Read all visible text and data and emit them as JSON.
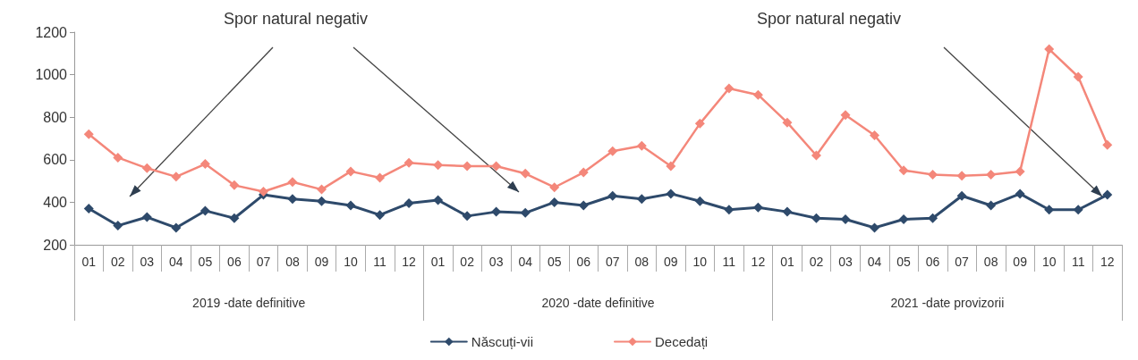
{
  "chart_data": {
    "type": "line",
    "categories": [
      "01",
      "02",
      "03",
      "04",
      "05",
      "06",
      "07",
      "08",
      "09",
      "10",
      "11",
      "12",
      "01",
      "02",
      "03",
      "04",
      "05",
      "06",
      "07",
      "08",
      "09",
      "10",
      "11",
      "12",
      "01",
      "02",
      "03",
      "04",
      "05",
      "06",
      "07",
      "08",
      "09",
      "10",
      "11",
      "12"
    ],
    "series": [
      {
        "name": "Născuți-vii",
        "color": "#2e4a6b",
        "values": [
          370,
          290,
          330,
          280,
          360,
          325,
          435,
          415,
          405,
          385,
          340,
          395,
          410,
          335,
          355,
          350,
          400,
          385,
          430,
          415,
          440,
          405,
          365,
          375,
          355,
          325,
          320,
          280,
          320,
          325,
          430,
          385,
          440,
          365,
          365,
          435
        ]
      },
      {
        "name": "Decedați",
        "color": "#f4877a",
        "values": [
          720,
          610,
          560,
          520,
          580,
          480,
          450,
          495,
          460,
          545,
          515,
          585,
          575,
          570,
          570,
          535,
          470,
          540,
          640,
          665,
          570,
          770,
          935,
          905,
          775,
          620,
          810,
          715,
          550,
          530,
          525,
          530,
          545,
          1120,
          990,
          670
        ]
      }
    ],
    "annotations": [
      "Spor natural negativ",
      "Spor natural negativ",
      "2019 -date definitive",
      "2020 -date definitive",
      "2021 -date provizorii"
    ],
    "ylim": [
      200,
      1200
    ],
    "yticks": [
      200,
      400,
      600,
      800,
      1000,
      1200
    ],
    "grid": false,
    "legend": "bottom",
    "marker": "diamond",
    "line_style": "solid"
  }
}
